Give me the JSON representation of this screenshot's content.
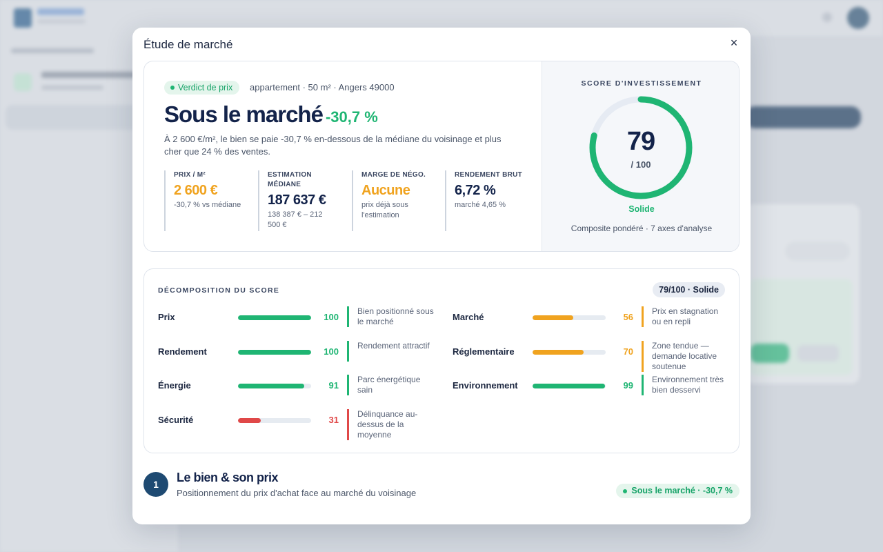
{
  "modal": {
    "title": "Étude de marché",
    "close_icon": "×"
  },
  "verdict": {
    "pill": "Verdict de prix",
    "property": "appartement · 50 m² · Angers 49000",
    "headline": "Sous le marché",
    "delta": "-30,7 %",
    "lead": "À 2 600 €/m², le bien se paie -30,7 % en-dessous de la médiane du voisinage et plus cher que 24 % des ventes."
  },
  "metrics": [
    {
      "label": "Prix / m²",
      "value": "2 600 €",
      "sub": "-30,7 % vs médiane"
    },
    {
      "label": "Estimation médiane",
      "value": "187 637 €",
      "sub": "138 387 € – 212 500 €"
    },
    {
      "label": "Marge de négo.",
      "value": "Aucune",
      "sub": "prix déjà sous l'estimation"
    },
    {
      "label": "Rendement brut",
      "value": "6,72 %",
      "sub": "marché 4,65 %"
    }
  ],
  "score": {
    "title": "SCORE D'INVESTISSEMENT",
    "value": 79,
    "max_label": "/ 100",
    "max": 100,
    "label": "Solide",
    "foot": "Composite pondéré · 7 axes d'analyse",
    "color": "#1fb573"
  },
  "breakdown": {
    "title": "DÉCOMPOSITION DU SCORE",
    "badge": "79/100 · Solide",
    "left": [
      {
        "label": "Prix",
        "value": 100,
        "note": "Bien positionné sous le marché",
        "tone": "green"
      },
      {
        "label": "Rendement",
        "value": 100,
        "note": "Rendement attractif",
        "tone": "green"
      },
      {
        "label": "Énergie",
        "value": 91,
        "note": "Parc énergétique sain",
        "tone": "green"
      },
      {
        "label": "Sécurité",
        "value": 31,
        "note": "Délinquance au-dessus de la moyenne",
        "tone": "red"
      }
    ],
    "right": [
      {
        "label": "Marché",
        "value": 56,
        "note": "Prix en stagnation ou en repli",
        "tone": "orange"
      },
      {
        "label": "Réglementaire",
        "value": 70,
        "note": "Zone tendue — demande locative soutenue",
        "tone": "orange"
      },
      {
        "label": "Environnement",
        "value": 99,
        "note": "Environnement très bien desservi",
        "tone": "green"
      }
    ]
  },
  "section": {
    "number": "1",
    "title": "Le bien & son prix",
    "subtitle": "Positionnement du prix d'achat face au marché du voisinage",
    "pill": "Sous le marché · -30,7 %"
  }
}
